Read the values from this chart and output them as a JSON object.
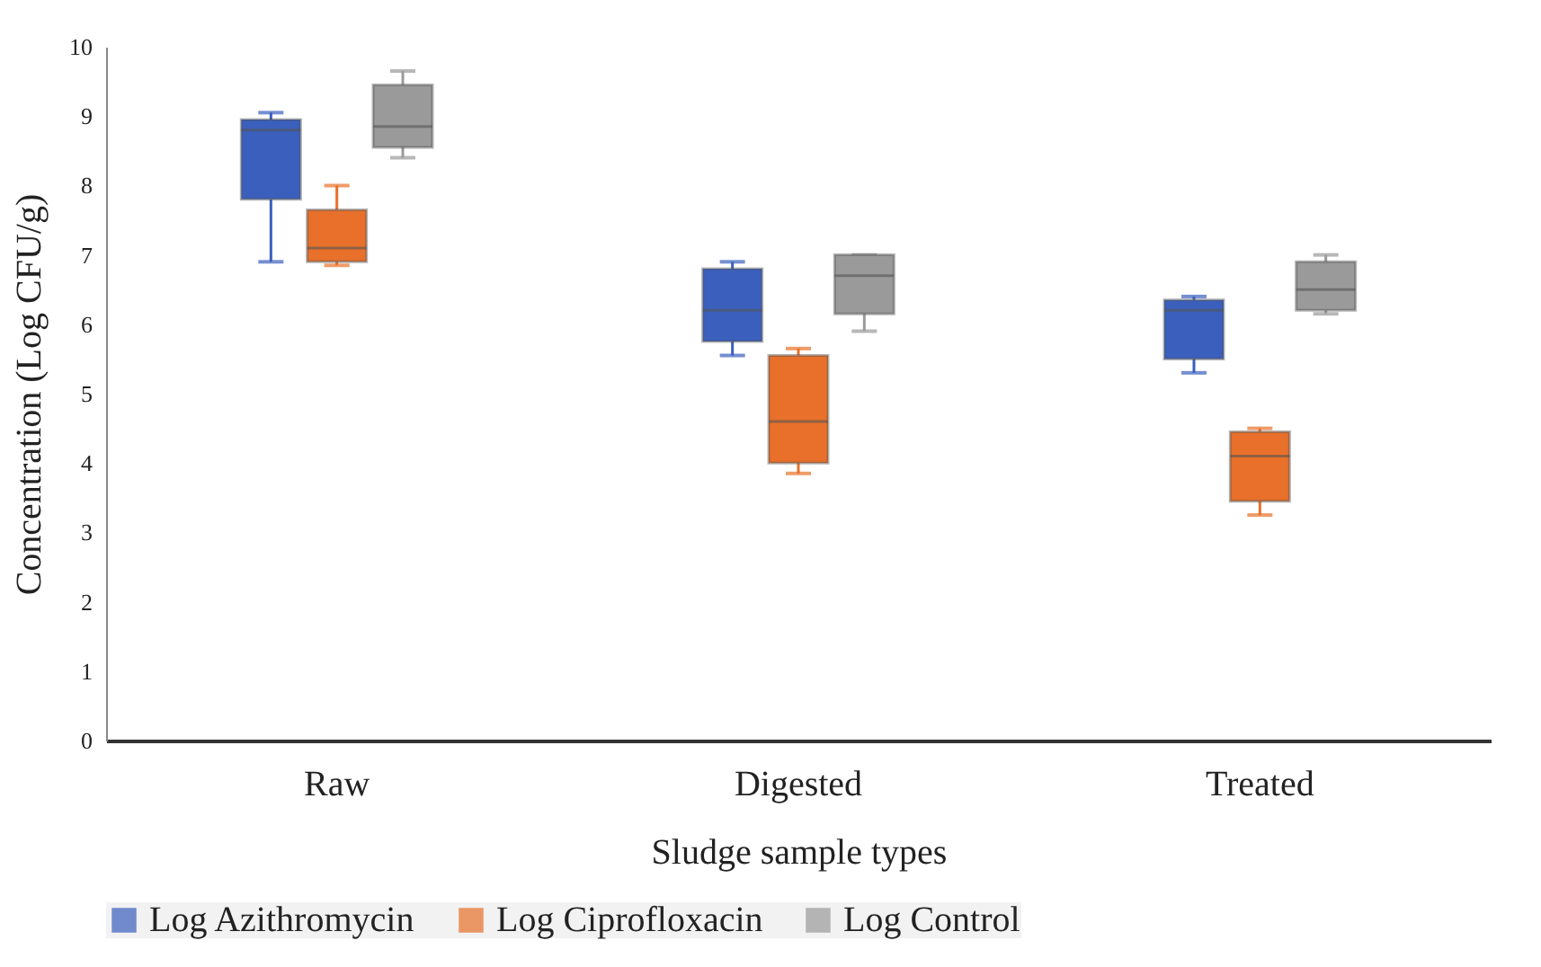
{
  "chart_data": {
    "type": "box",
    "xlabel": "Sludge sample types",
    "ylabel": "Concentration (Log CFU/g)",
    "categories": [
      "Raw",
      "Digested",
      "Treated"
    ],
    "ylim": [
      0,
      10
    ],
    "yticks": [
      0,
      1,
      2,
      3,
      4,
      5,
      6,
      7,
      8,
      9,
      10
    ],
    "grid": false,
    "legend": "bottom",
    "series": [
      {
        "name": "Log Azithromycin",
        "color": "#3a5fbd",
        "boxes": [
          {
            "low": 6.9,
            "q1": 7.8,
            "median": 8.8,
            "q3": 8.95,
            "high": 9.05
          },
          {
            "low": 5.55,
            "q1": 5.75,
            "median": 6.2,
            "q3": 6.8,
            "high": 6.9
          },
          {
            "low": 5.3,
            "q1": 5.5,
            "median": 6.2,
            "q3": 6.35,
            "high": 6.4
          }
        ]
      },
      {
        "name": "Log Ciprofloxacin",
        "color": "#e8702a",
        "boxes": [
          {
            "low": 6.85,
            "q1": 6.9,
            "median": 7.1,
            "q3": 7.65,
            "high": 8.0
          },
          {
            "low": 3.85,
            "q1": 4.0,
            "median": 4.6,
            "q3": 5.55,
            "high": 5.65
          },
          {
            "low": 3.25,
            "q1": 3.45,
            "median": 4.1,
            "q3": 4.45,
            "high": 4.5
          }
        ]
      },
      {
        "name": "Log Control",
        "color": "#9a9a9a",
        "boxes": [
          {
            "low": 8.4,
            "q1": 8.55,
            "median": 8.85,
            "q3": 9.45,
            "high": 9.65
          },
          {
            "low": 5.9,
            "q1": 6.15,
            "median": 6.7,
            "q3": 7.0,
            "high": 7.0
          },
          {
            "low": 6.15,
            "q1": 6.2,
            "median": 6.5,
            "q3": 6.9,
            "high": 7.0
          }
        ]
      }
    ]
  }
}
